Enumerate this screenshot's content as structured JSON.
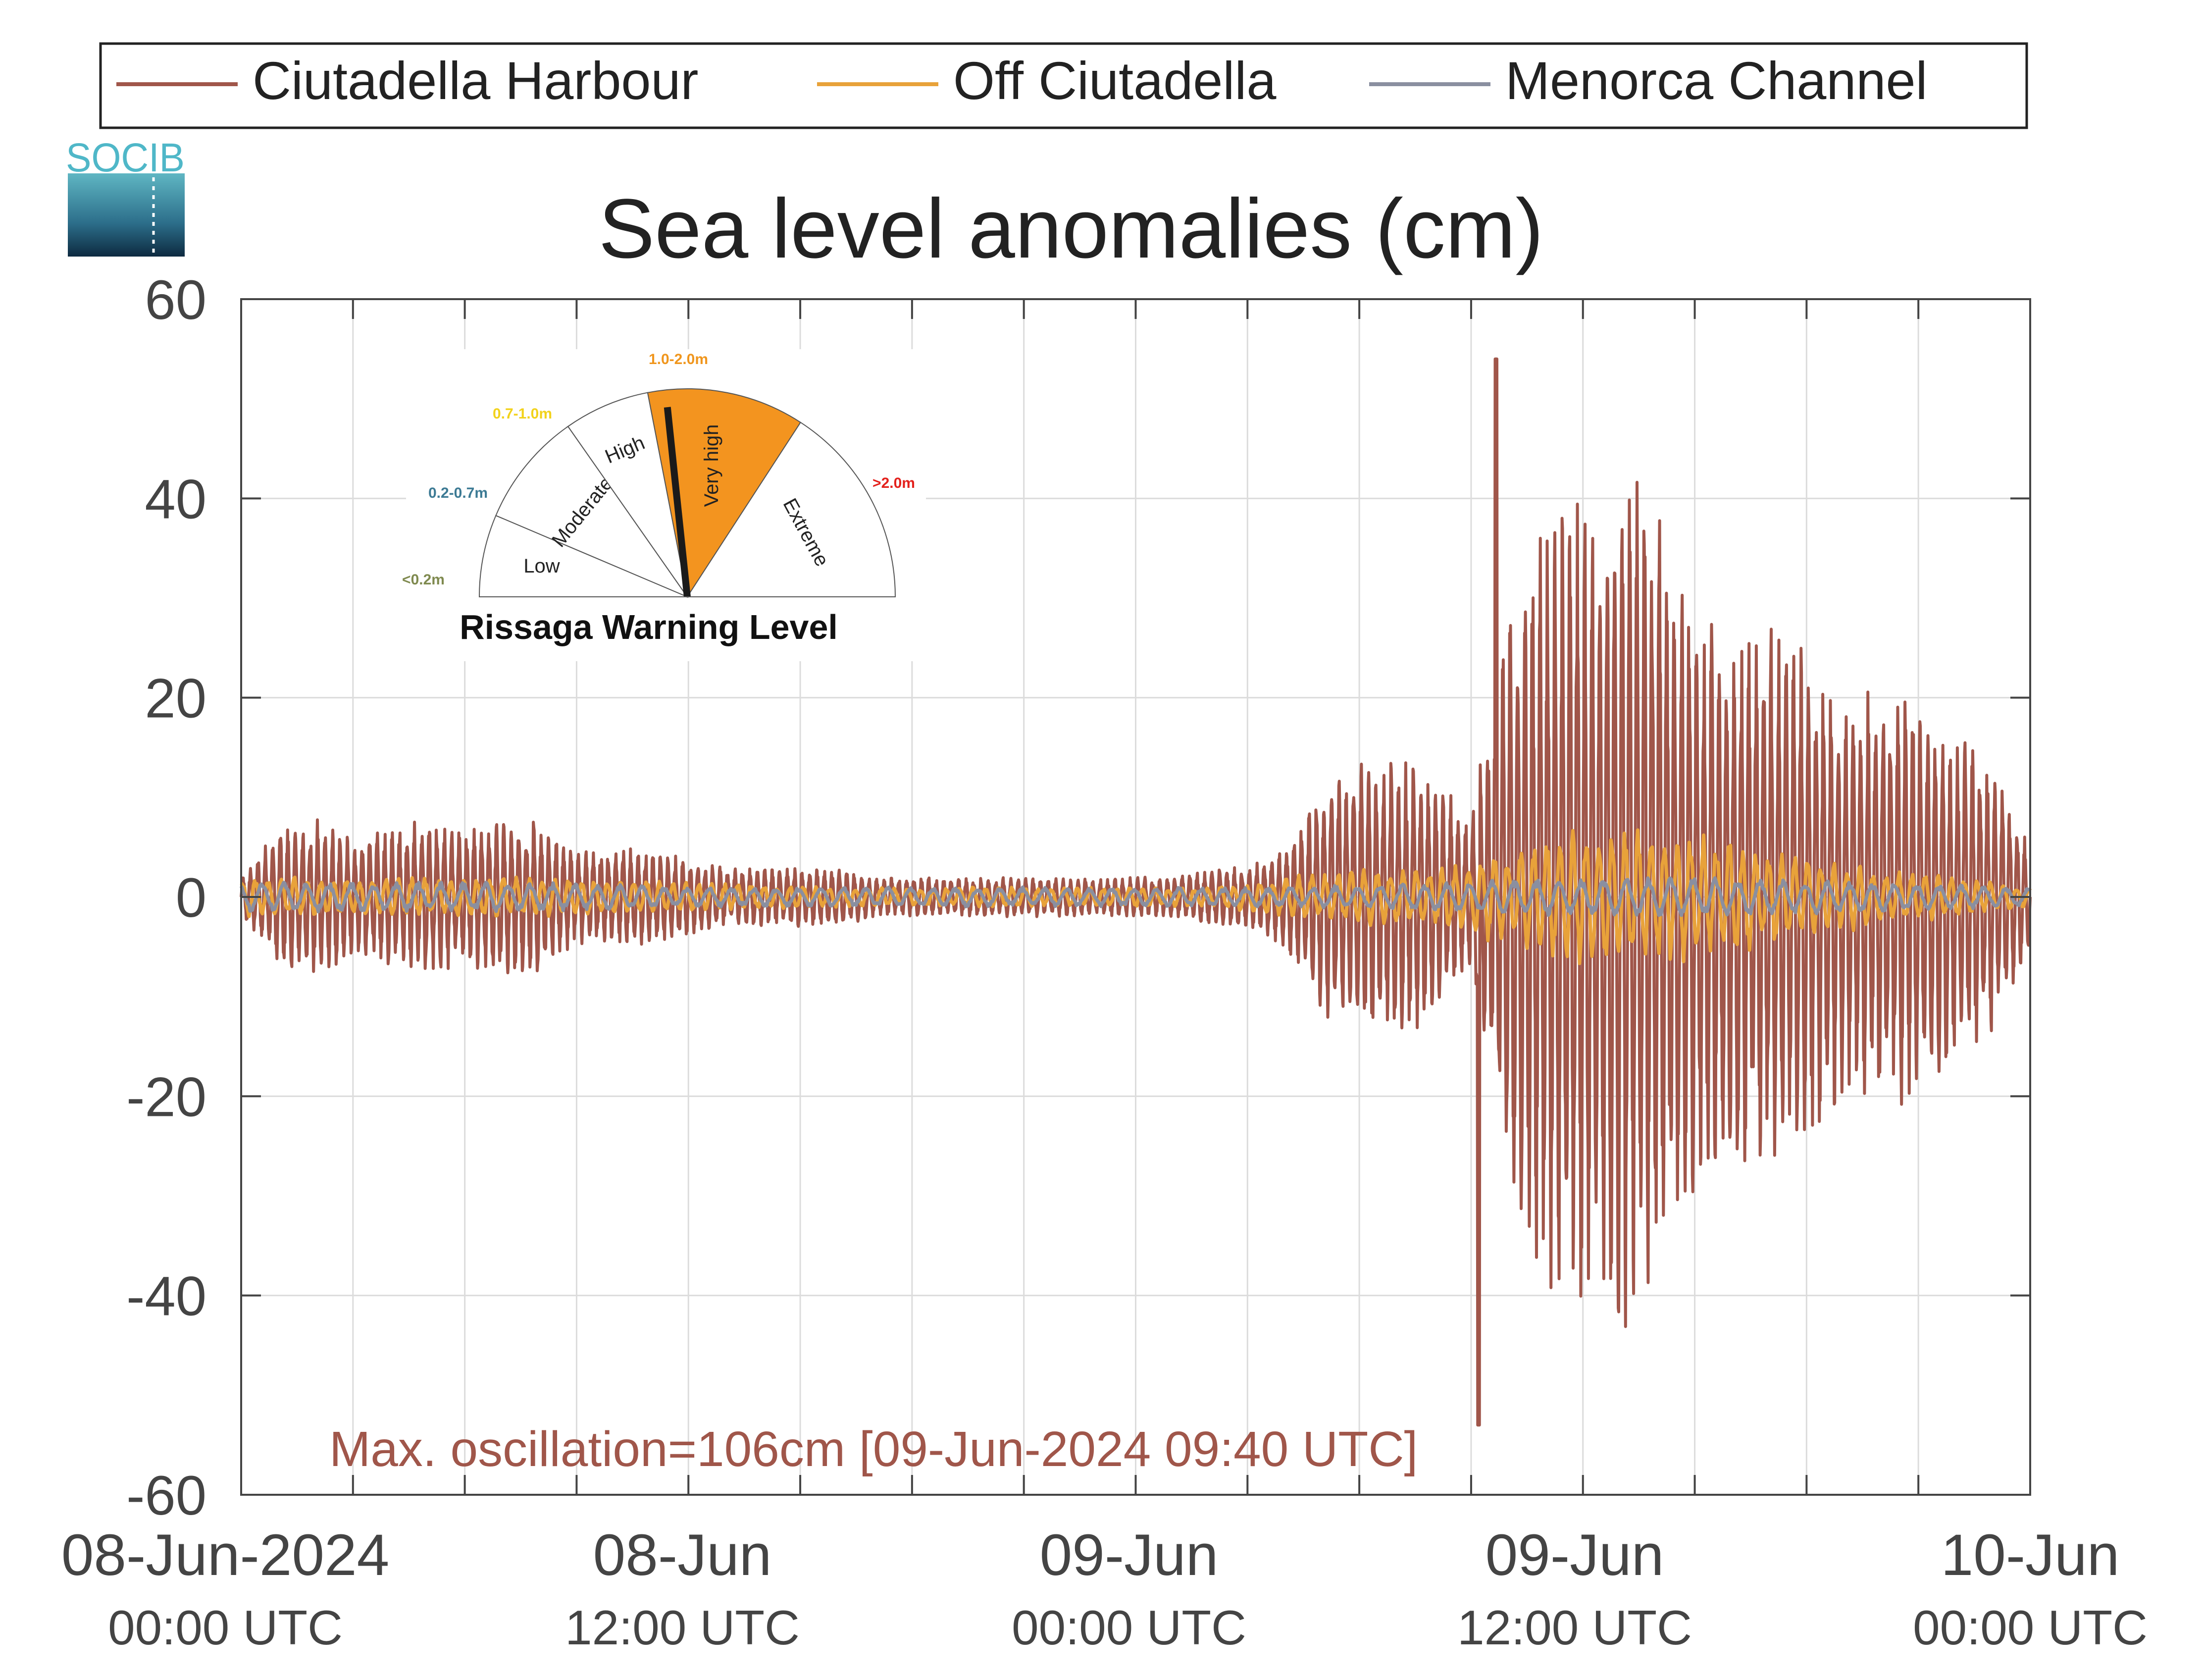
{
  "chart_data": {
    "type": "line",
    "title": "Sea level anomalies (cm)",
    "xlabel": "",
    "ylabel": "",
    "ylim": [
      -60,
      60
    ],
    "yticks": [
      "60",
      "40",
      "20",
      "0",
      "-20",
      "-40",
      "-60"
    ],
    "xlim_hours": [
      0,
      48
    ],
    "grid": true,
    "legend_position": "top",
    "xticks": [
      {
        "main": "08-Jun-2024",
        "sub": "00:00 UTC"
      },
      {
        "main": "08-Jun",
        "sub": "12:00 UTC"
      },
      {
        "main": "09-Jun",
        "sub": "00:00 UTC"
      },
      {
        "main": "09-Jun",
        "sub": "12:00 UTC"
      },
      {
        "main": "10-Jun",
        "sub": "00:00 UTC"
      }
    ],
    "series": [
      {
        "name": "Ciutadella Harbour",
        "color": "#a0564a",
        "envelope": {
          "hours": [
            0,
            1,
            2,
            3,
            4,
            5,
            6,
            7,
            8,
            9,
            10,
            11,
            12,
            13,
            14,
            15,
            16,
            17,
            18,
            19,
            20,
            21,
            22,
            23,
            24,
            25,
            26,
            27,
            28,
            29,
            30,
            31,
            32,
            33,
            34,
            35,
            36,
            37,
            38,
            39,
            40,
            41,
            42,
            43,
            44,
            45,
            46,
            47,
            48
          ],
          "amplitude": [
            2,
            7,
            8,
            6,
            7,
            8,
            7,
            8,
            8,
            5,
            5,
            5,
            4,
            3,
            3,
            3,
            3,
            2,
            2,
            2,
            2,
            2,
            2,
            2,
            2,
            2,
            3,
            3,
            5,
            12,
            14,
            14,
            13,
            8,
            30,
            40,
            42,
            45,
            40,
            30,
            28,
            27,
            26,
            20,
            22,
            20,
            17,
            14,
            5
          ]
        },
        "max_value": 54,
        "min_value": -53
      },
      {
        "name": "Off Ciutadella",
        "color": "#e8a23a",
        "envelope": {
          "hours": [
            0,
            4,
            8,
            12,
            16,
            20,
            24,
            26,
            28,
            30,
            32,
            34,
            36,
            38,
            40,
            42,
            44,
            46,
            48
          ],
          "amplitude": [
            2,
            2,
            2,
            1.5,
            1,
            1,
            1,
            1,
            2,
            3,
            3,
            5,
            7,
            7,
            6,
            4,
            3,
            2,
            1
          ]
        }
      },
      {
        "name": "Menorca Channel",
        "color": "#8a8fa0",
        "envelope": {
          "hours": [
            0,
            4,
            8,
            12,
            16,
            20,
            24,
            28,
            32,
            36,
            40,
            44,
            48
          ],
          "amplitude": [
            1.5,
            1.5,
            1.5,
            1,
            1,
            1,
            1,
            1,
            1.5,
            2,
            2,
            1.5,
            1
          ]
        }
      }
    ],
    "annotation": "Max. oscillation=106cm [09-Jun-2024 09:40 UTC]"
  },
  "gauge": {
    "title": "Rissaga Warning Level",
    "current_level": "Very high",
    "levels": [
      {
        "label": "Low",
        "range": "<0.2m",
        "range_color": "#7f8a4f",
        "fill": "#ffffff"
      },
      {
        "label": "Moderate",
        "range": "0.2-0.7m",
        "range_color": "#3c7a94",
        "fill": "#ffffff"
      },
      {
        "label": "High",
        "range": "0.7-1.0m",
        "range_color": "#f2d21c",
        "fill": "#ffffff"
      },
      {
        "label": "Very high",
        "range": "1.0-2.0m",
        "range_color": "#f0961d",
        "fill": "#f3941f"
      },
      {
        "label": "Extreme",
        "range": ">2.0m",
        "range_color": "#e3211c",
        "fill": "#ffffff"
      }
    ]
  },
  "logo": {
    "text": "SOCIB"
  }
}
